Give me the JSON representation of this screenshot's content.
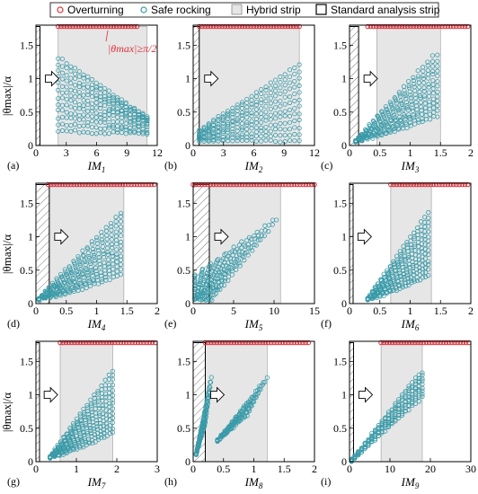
{
  "legend": {
    "items": [
      {
        "label": "Overturning",
        "marker": "circle",
        "color": "#e0303a"
      },
      {
        "label": "Safe rocking",
        "marker": "circle",
        "color": "#3a9aa8"
      },
      {
        "label": "Hybrid strip",
        "marker": "rect-gray"
      },
      {
        "label": "Standard analysis strip",
        "marker": "rect-black"
      }
    ]
  },
  "colors": {
    "overturning": "#e0303a",
    "safe": "#3a9aa8",
    "hybrid_fill": "#e6e6e6",
    "standard_edge": "#000000",
    "hatch": "#777777"
  },
  "annotation": {
    "text": "|θmax|≥π/2"
  },
  "y_axis_label": "|θmax|/α",
  "chart_data": [
    {
      "id": "a",
      "label": "(a)",
      "type": "scatter",
      "xlabel": "IM1",
      "xlim": [
        0,
        12
      ],
      "xticks": [
        0,
        3,
        6,
        9,
        12
      ],
      "ylim": [
        0,
        1.8
      ],
      "yticks": [
        0,
        0.5,
        1,
        1.5
      ],
      "standard_strip": [
        0,
        0.4
      ],
      "hybrid_strip": [
        2.2,
        11
      ],
      "overturning_x": [
        [
          2.2,
          10
        ]
      ],
      "shape": "fan_decreasing",
      "safe_x_range": [
        2.2,
        11
      ],
      "safe_y_peak": 1.3,
      "safe_y_floor": 0.1
    },
    {
      "id": "b",
      "label": "(b)",
      "type": "scatter",
      "xlabel": "IM2",
      "xlim": [
        0,
        12
      ],
      "xticks": [
        0,
        3,
        6,
        9,
        12
      ],
      "ylim": [
        0,
        1.8
      ],
      "yticks": [
        0,
        0.5,
        1,
        1.5
      ],
      "standard_strip": [
        0,
        0.6
      ],
      "hybrid_strip": [
        0.6,
        10.5
      ],
      "overturning_x": [
        [
          0.6,
          10.5
        ]
      ],
      "shape": "fan_increasing",
      "safe_x_range": [
        0.6,
        10.5
      ],
      "safe_y_peak": 1.2,
      "safe_y_floor": 0.05
    },
    {
      "id": "c",
      "label": "(c)",
      "type": "scatter",
      "xlabel": "IM3",
      "xlim": [
        0,
        2
      ],
      "xticks": [
        0,
        0.5,
        1,
        1.5,
        2
      ],
      "ylim": [
        0,
        1.8
      ],
      "yticks": [
        0,
        0.5,
        1,
        1.5
      ],
      "standard_strip": [
        0,
        0.15
      ],
      "hybrid_strip": [
        0.45,
        1.5
      ],
      "overturning_x": [
        [
          0.3,
          1.95
        ]
      ],
      "shape": "rising_wedge",
      "safe_x_range": [
        0.1,
        1.45
      ],
      "safe_y_peak": 1.35,
      "safe_y_floor": 0.05
    },
    {
      "id": "d",
      "label": "(d)",
      "type": "scatter",
      "xlabel": "IM4",
      "xlim": [
        0,
        2
      ],
      "xticks": [
        0,
        0.5,
        1,
        1.5,
        2
      ],
      "ylim": [
        0,
        1.8
      ],
      "yticks": [
        0,
        0.5,
        1,
        1.5
      ],
      "standard_strip": [
        0,
        0.22
      ],
      "hybrid_strip": [
        0.22,
        1.45
      ],
      "overturning_x": [
        [
          0.2,
          1.95
        ]
      ],
      "shape": "rising_wedge",
      "safe_x_range": [
        0.05,
        1.4
      ],
      "safe_y_peak": 1.3,
      "safe_y_floor": 0.05
    },
    {
      "id": "e",
      "label": "(e)",
      "type": "scatter",
      "xlabel": "IM5",
      "xlim": [
        0,
        15
      ],
      "xticks": [
        0,
        5,
        10,
        15
      ],
      "ylim": [
        0,
        1.8
      ],
      "yticks": [
        0,
        0.5,
        1,
        1.5
      ],
      "standard_strip": [
        0,
        2
      ],
      "hybrid_strip": [
        2,
        10.8
      ],
      "overturning_x": [
        [
          0,
          15
        ]
      ],
      "shape": "rising_fan",
      "safe_x_range": [
        0.2,
        10.8
      ],
      "safe_y_peak": 1.25,
      "safe_y_floor": 0.05
    },
    {
      "id": "f",
      "label": "(f)",
      "type": "scatter",
      "xlabel": "IM6",
      "xlim": [
        0,
        2
      ],
      "xticks": [
        0,
        0.5,
        1,
        1.5,
        2
      ],
      "ylim": [
        0,
        1.8
      ],
      "yticks": [
        0,
        0.5,
        1,
        1.5
      ],
      "standard_strip": [
        0,
        0.05
      ],
      "hybrid_strip": [
        0.68,
        1.35
      ],
      "overturning_x": [
        [
          0.68,
          1.95
        ]
      ],
      "shape": "rising_wedge",
      "safe_x_range": [
        0.3,
        1.3
      ],
      "safe_y_peak": 1.3,
      "safe_y_floor": 0.05
    },
    {
      "id": "g",
      "label": "(g)",
      "type": "scatter",
      "xlabel": "IM7",
      "xlim": [
        0,
        3
      ],
      "xticks": [
        0,
        1,
        2,
        3
      ],
      "ylim": [
        0,
        1.8
      ],
      "yticks": [
        0,
        0.5,
        1,
        1.5
      ],
      "standard_strip": [
        0,
        0.07
      ],
      "hybrid_strip": [
        0.6,
        1.9
      ],
      "overturning_x": [
        [
          0.6,
          2.95
        ]
      ],
      "shape": "rising_wedge",
      "safe_x_range": [
        0.35,
        1.9
      ],
      "safe_y_peak": 1.3,
      "safe_y_floor": 0.05
    },
    {
      "id": "h",
      "label": "(h)",
      "type": "scatter",
      "xlabel": "IM8",
      "xlim": [
        0,
        2
      ],
      "xticks": [
        0,
        0.5,
        1,
        1.5,
        2
      ],
      "ylim": [
        0,
        1.8
      ],
      "yticks": [
        0,
        0.5,
        1,
        1.5
      ],
      "standard_strip": [
        0,
        0.2
      ],
      "hybrid_strip": [
        0.2,
        1.22
      ],
      "overturning_x": [
        [
          0.2,
          1.9
        ]
      ],
      "shape": "two_wedges",
      "safe_x_range": [
        0.05,
        1.22
      ],
      "safe_y_peak": 1.3,
      "safe_y_floor": 0.05
    },
    {
      "id": "i",
      "label": "(i)",
      "type": "scatter",
      "xlabel": "IM9",
      "xlim": [
        0,
        30
      ],
      "xticks": [
        0,
        10,
        20,
        30
      ],
      "ylim": [
        0,
        1.8
      ],
      "yticks": [
        0,
        0.5,
        1,
        1.5
      ],
      "standard_strip": [
        0,
        1
      ],
      "hybrid_strip": [
        7.8,
        18
      ],
      "overturning_x": [
        [
          7.8,
          29.5
        ]
      ],
      "shape": "linear_band",
      "safe_x_range": [
        0.5,
        18
      ],
      "safe_y_peak": 1.35,
      "safe_y_floor": 0.02
    }
  ]
}
